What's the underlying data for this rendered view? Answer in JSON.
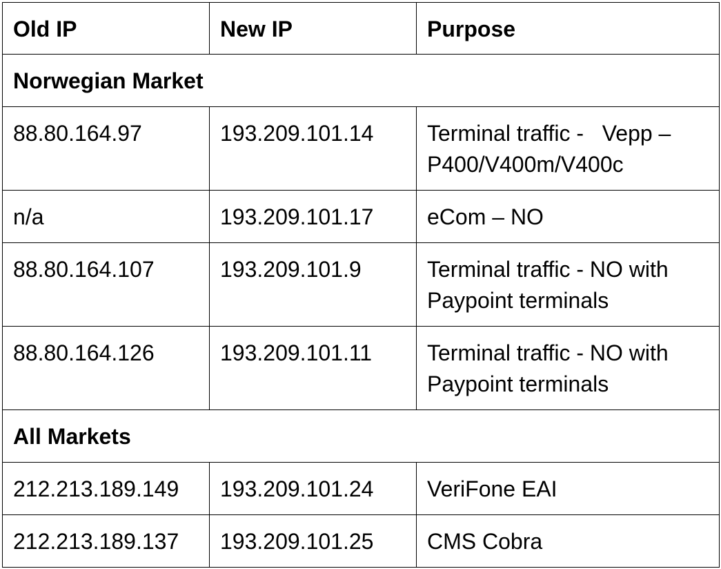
{
  "table": {
    "headers": [
      "Old IP",
      "New IP",
      "Purpose"
    ],
    "sections": [
      {
        "title": "Norwegian Market",
        "rows": [
          {
            "old_ip": "88.80.164.97",
            "new_ip": "193.209.101.14",
            "purpose": "Terminal traffic -   Vepp – P400/V400m/V400c"
          },
          {
            "old_ip": "n/a",
            "new_ip": "193.209.101.17",
            "purpose": "eCom – NO"
          },
          {
            "old_ip": "88.80.164.107",
            "new_ip": "193.209.101.9",
            "purpose": "Terminal traffic - NO with Paypoint terminals"
          },
          {
            "old_ip": "88.80.164.126",
            "new_ip": "193.209.101.11",
            "purpose": "Terminal traffic - NO with Paypoint terminals"
          }
        ]
      },
      {
        "title": "All Markets",
        "rows": [
          {
            "old_ip": "212.213.189.149",
            "new_ip": "193.209.101.24",
            "purpose": "VeriFone EAI"
          },
          {
            "old_ip": "212.213.189.137",
            "new_ip": "193.209.101.25",
            "purpose": "CMS Cobra"
          }
        ]
      }
    ]
  }
}
